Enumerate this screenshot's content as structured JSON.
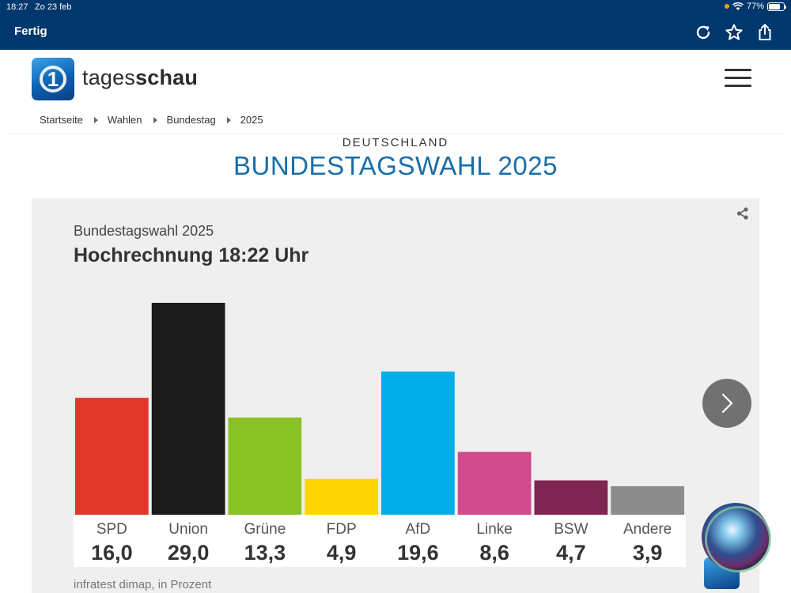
{
  "status_bar": {
    "time": "18:27",
    "date": "Zo 23 feb",
    "battery": "77%",
    "battery_level": 0.77
  },
  "browser": {
    "done_label": "Fertig",
    "icons": [
      "reload-icon",
      "star-icon",
      "share-icon"
    ]
  },
  "header": {
    "brand_light": "tages",
    "brand_bold": "schau",
    "menu_icon": "hamburger-icon"
  },
  "breadcrumb": [
    "Startseite",
    "Wahlen",
    "Bundestag",
    "2025"
  ],
  "section": {
    "kicker": "DEUTSCHLAND",
    "headline": "BUNDESTAGSWAHL 2025"
  },
  "chart_data": {
    "type": "bar",
    "subtitle": "Bundestagswahl 2025",
    "title": "Hochrechnung 18:22 Uhr",
    "categories": [
      "SPD",
      "Union",
      "Grüne",
      "FDP",
      "AfD",
      "Linke",
      "BSW",
      "Andere"
    ],
    "values": [
      16.0,
      29.0,
      13.3,
      4.9,
      19.6,
      8.6,
      4.7,
      3.9
    ],
    "value_labels": [
      "16,0",
      "29,0",
      "13,3",
      "4,9",
      "19,6",
      "8,6",
      "4,7",
      "3,9"
    ],
    "colors": [
      "#e2382a",
      "#1a1a1a",
      "#8ac226",
      "#ffd600",
      "#00aee8",
      "#cf4b8c",
      "#802452",
      "#8c8c8c"
    ],
    "ylim": [
      0,
      29
    ],
    "source": "infratest dimap, in Prozent"
  }
}
